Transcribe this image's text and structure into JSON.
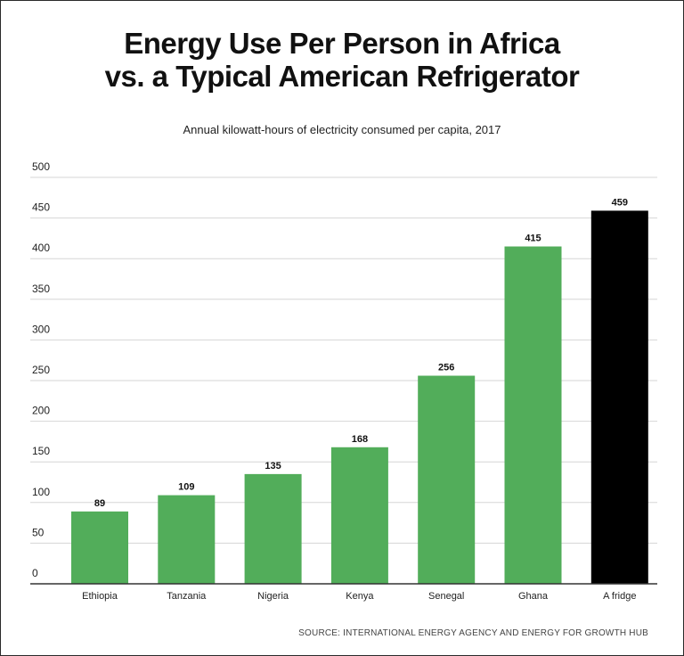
{
  "chart_data": {
    "type": "bar",
    "title_line1": "Energy Use Per Person in Africa",
    "title_line2": "vs. a Typical American Refrigerator",
    "subtitle": "Annual kilowatt-hours of electricity consumed per capita, 2017",
    "categories": [
      "Ethiopia",
      "Tanzania",
      "Nigeria",
      "Kenya",
      "Senegal",
      "Ghana",
      "A fridge"
    ],
    "values": [
      89,
      109,
      135,
      168,
      256,
      415,
      459
    ],
    "bar_colors": [
      "#52ad5a",
      "#52ad5a",
      "#52ad5a",
      "#52ad5a",
      "#52ad5a",
      "#52ad5a",
      "#000000"
    ],
    "ylim": [
      0,
      500
    ],
    "yticks": [
      0,
      50,
      100,
      150,
      200,
      250,
      300,
      350,
      400,
      450,
      500
    ],
    "grid": true,
    "xlabel": "",
    "ylabel": "",
    "source": "SOURCE: INTERNATIONAL ENERGY AGENCY AND ENERGY FOR GROWTH HUB"
  },
  "colors": {
    "grid": "#d6d6d6",
    "axis": "#333333",
    "text": "#222222"
  }
}
